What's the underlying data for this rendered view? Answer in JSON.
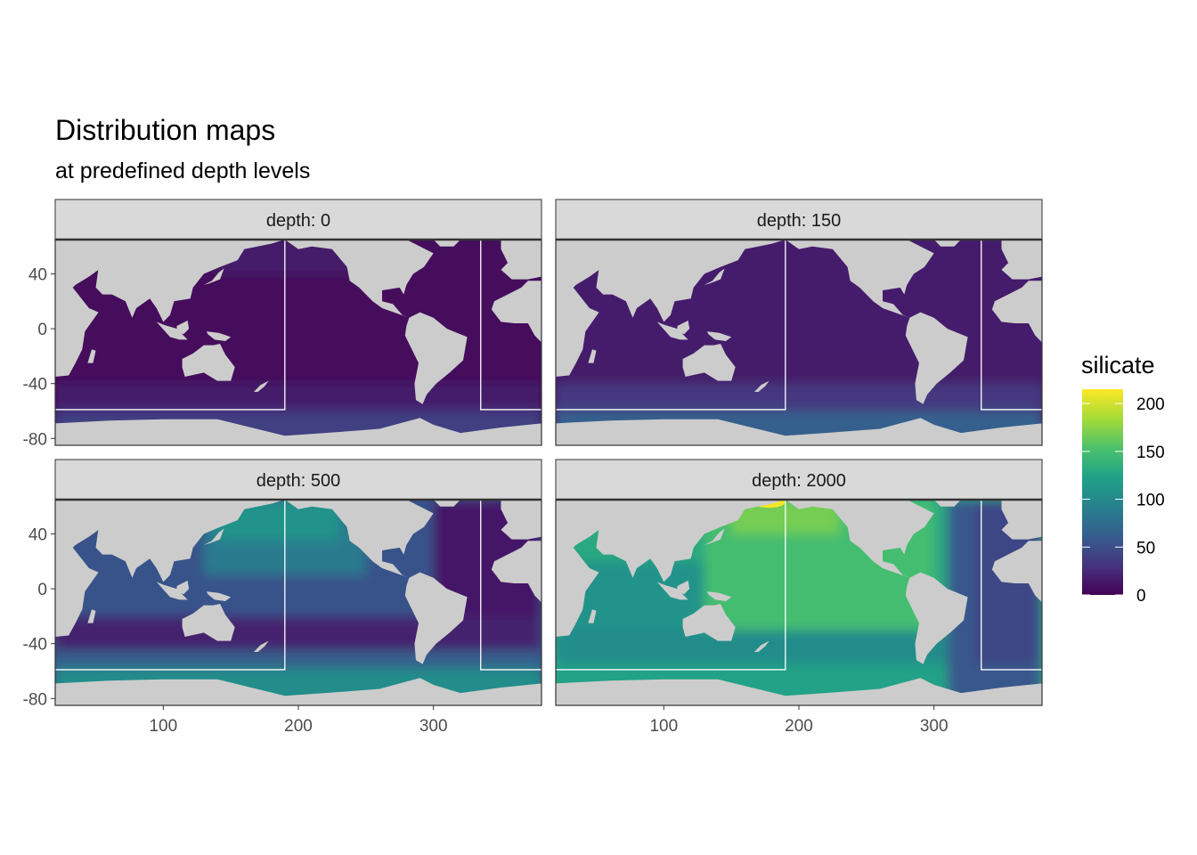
{
  "title": "Distribution maps",
  "subtitle": "at predefined depth levels",
  "chart_data": {
    "type": "heatmap",
    "variable": "silicate",
    "facets": [
      {
        "label": "depth: 0",
        "depth": 0,
        "mean_level": 8
      },
      {
        "label": "depth: 150",
        "depth": 150,
        "mean_level": 22
      },
      {
        "label": "depth: 500",
        "depth": 500,
        "mean_level": 55
      },
      {
        "label": "depth: 2000",
        "depth": 2000,
        "mean_level": 130
      }
    ],
    "x_ticks": [
      "100",
      "200",
      "300"
    ],
    "x_tick_values": [
      100,
      200,
      300
    ],
    "y_ticks": [
      "40",
      "0",
      "-40",
      "-80"
    ],
    "y_tick_values": [
      40,
      0,
      -40,
      -80
    ],
    "xlim": [
      20,
      380
    ],
    "ylim": [
      -85,
      65
    ],
    "legend": {
      "title": "silicate",
      "labels": [
        "200",
        "150",
        "100",
        "50",
        "0"
      ],
      "values": [
        200,
        150,
        100,
        50,
        0
      ],
      "range": [
        0,
        215
      ],
      "placement": "right"
    },
    "colors": {
      "land": "#cccccc",
      "strip": "#d9d9d9",
      "viridis": [
        "#440154",
        "#46327e",
        "#365c8d",
        "#277f8e",
        "#1fa187",
        "#4ac16d",
        "#a0da39",
        "#fde725"
      ]
    }
  }
}
